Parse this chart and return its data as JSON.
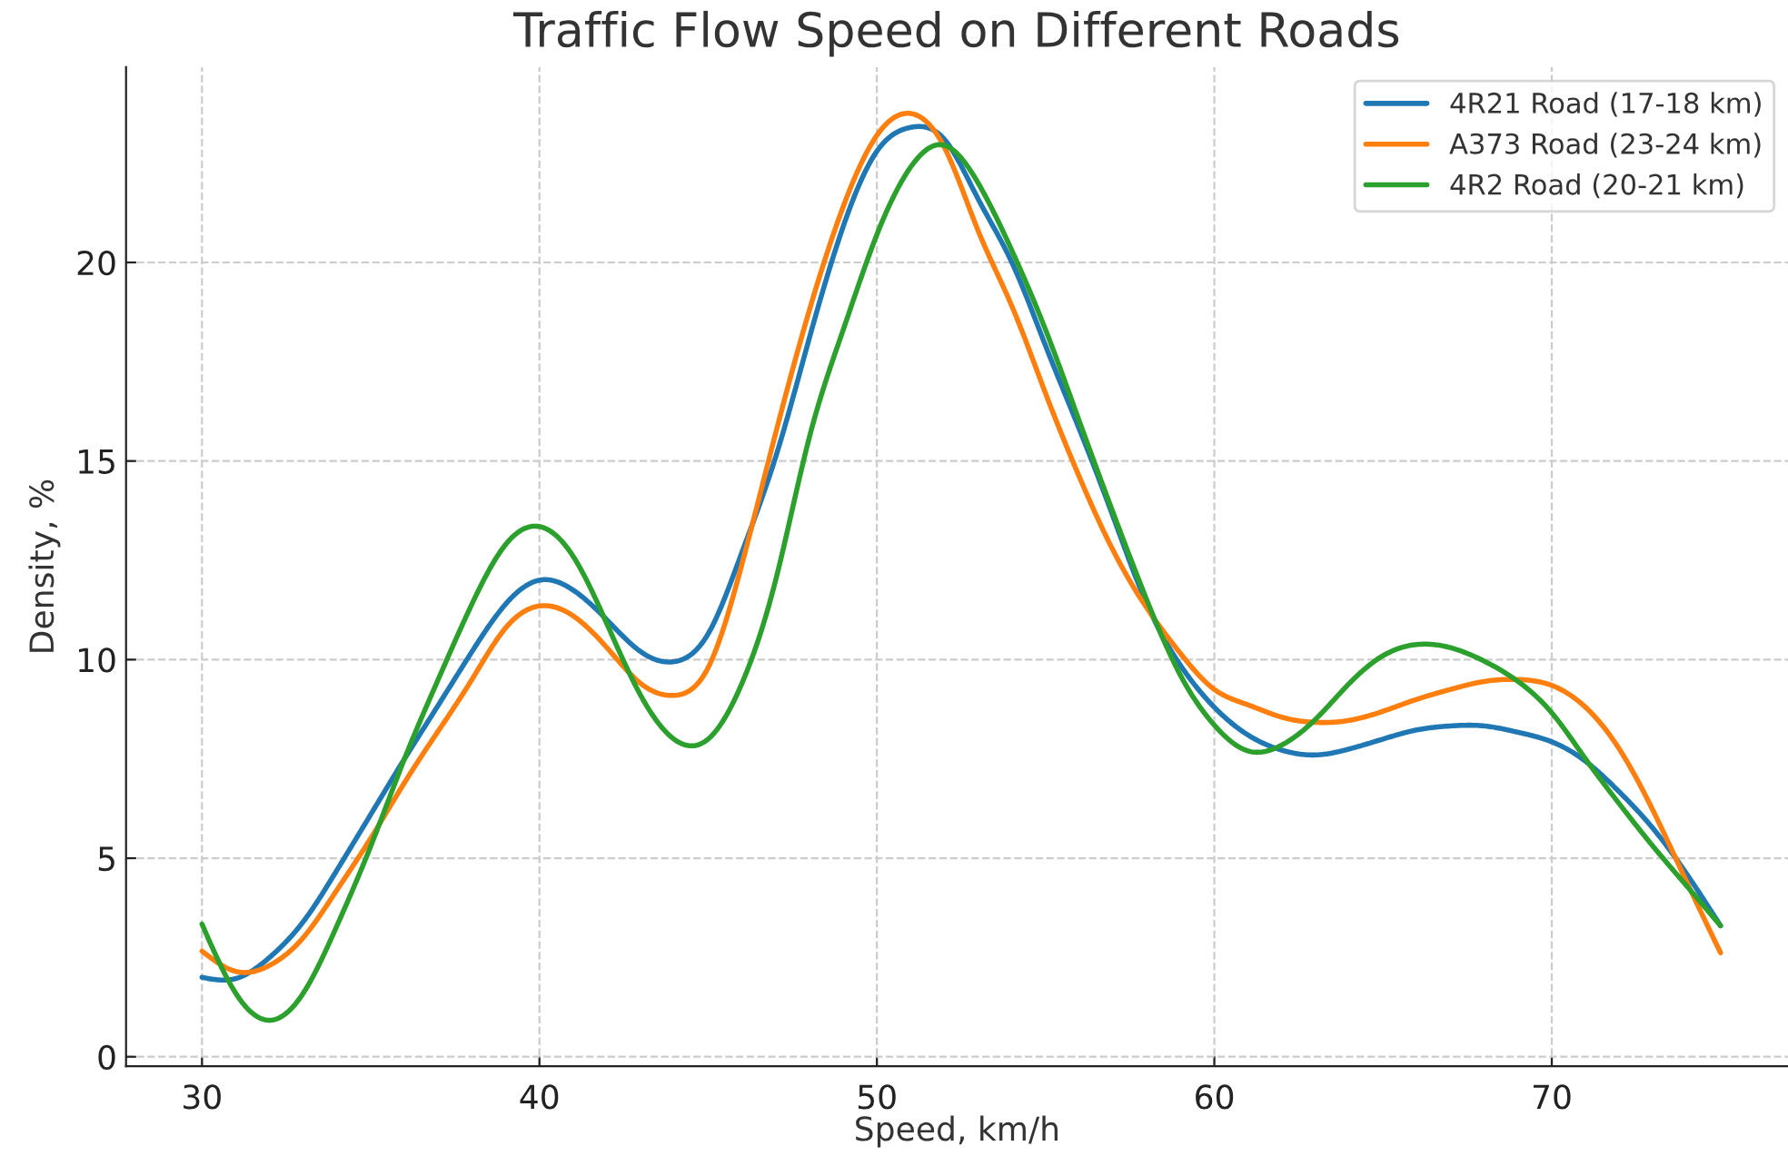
{
  "chart_data": {
    "type": "line",
    "title": "Traffic Flow Speed on Different Roads",
    "xlabel": "Speed, km/h",
    "ylabel": "Density, %",
    "x": [
      30,
      31,
      32,
      33,
      34,
      35,
      36,
      37,
      38,
      39,
      40,
      41,
      42,
      43,
      44,
      45,
      46,
      47,
      48,
      49,
      50,
      51,
      52,
      53,
      54,
      55,
      56,
      57,
      58,
      59,
      60,
      61,
      62,
      63,
      64,
      65,
      66,
      67,
      68,
      69,
      70,
      71,
      72,
      73,
      74,
      75
    ],
    "series": [
      {
        "name": "4R21 Road (17-18 km)",
        "color": "#1f77b4",
        "values": [
          2.0,
          1.97,
          2.5,
          3.4,
          4.7,
          6.1,
          7.5,
          8.85,
          10.2,
          11.4,
          12.0,
          11.75,
          11.0,
          10.2,
          9.95,
          10.65,
          12.7,
          15.1,
          18.1,
          20.9,
          22.8,
          23.4,
          23.1,
          21.6,
          20.0,
          17.9,
          15.8,
          13.6,
          11.4,
          9.85,
          8.8,
          8.1,
          7.72,
          7.6,
          7.75,
          8.0,
          8.23,
          8.33,
          8.33,
          8.17,
          7.93,
          7.44,
          6.67,
          5.75,
          4.6,
          3.3
        ]
      },
      {
        "name": "A373 Road (23-24 km)",
        "color": "#ff7f0e",
        "values": [
          2.66,
          2.15,
          2.3,
          3.0,
          4.2,
          5.5,
          6.9,
          8.2,
          9.5,
          10.8,
          11.35,
          11.1,
          10.3,
          9.4,
          9.1,
          9.8,
          12.4,
          15.7,
          18.8,
          21.4,
          23.2,
          23.75,
          22.9,
          20.8,
          18.9,
          16.7,
          14.6,
          12.75,
          11.3,
          10.15,
          9.25,
          8.86,
          8.55,
          8.42,
          8.47,
          8.7,
          9.0,
          9.25,
          9.45,
          9.5,
          9.35,
          8.8,
          7.75,
          6.2,
          4.4,
          2.62
        ]
      },
      {
        "name": "4R2 Road (20-21 km)",
        "color": "#2ca02c",
        "values": [
          3.34,
          1.6,
          0.92,
          1.6,
          3.3,
          5.3,
          7.5,
          9.5,
          11.4,
          12.9,
          13.35,
          12.6,
          10.9,
          9.1,
          7.99,
          8.0,
          9.4,
          12.0,
          15.6,
          18.3,
          20.7,
          22.4,
          22.95,
          22.0,
          20.3,
          18.3,
          16.0,
          13.7,
          11.5,
          9.6,
          8.35,
          7.7,
          7.85,
          8.5,
          9.4,
          10.1,
          10.38,
          10.3,
          9.96,
          9.45,
          8.66,
          7.5,
          6.37,
          5.3,
          4.3,
          3.3
        ]
      }
    ],
    "xlim": [
      27.75,
      77
    ],
    "ylim": [
      -0.24,
      24.92
    ],
    "xticks": [
      30,
      40,
      50,
      60,
      70
    ],
    "yticks": [
      0,
      5,
      10,
      15,
      20
    ],
    "grid": true,
    "legend": "top right",
    "line_style": "solid"
  }
}
